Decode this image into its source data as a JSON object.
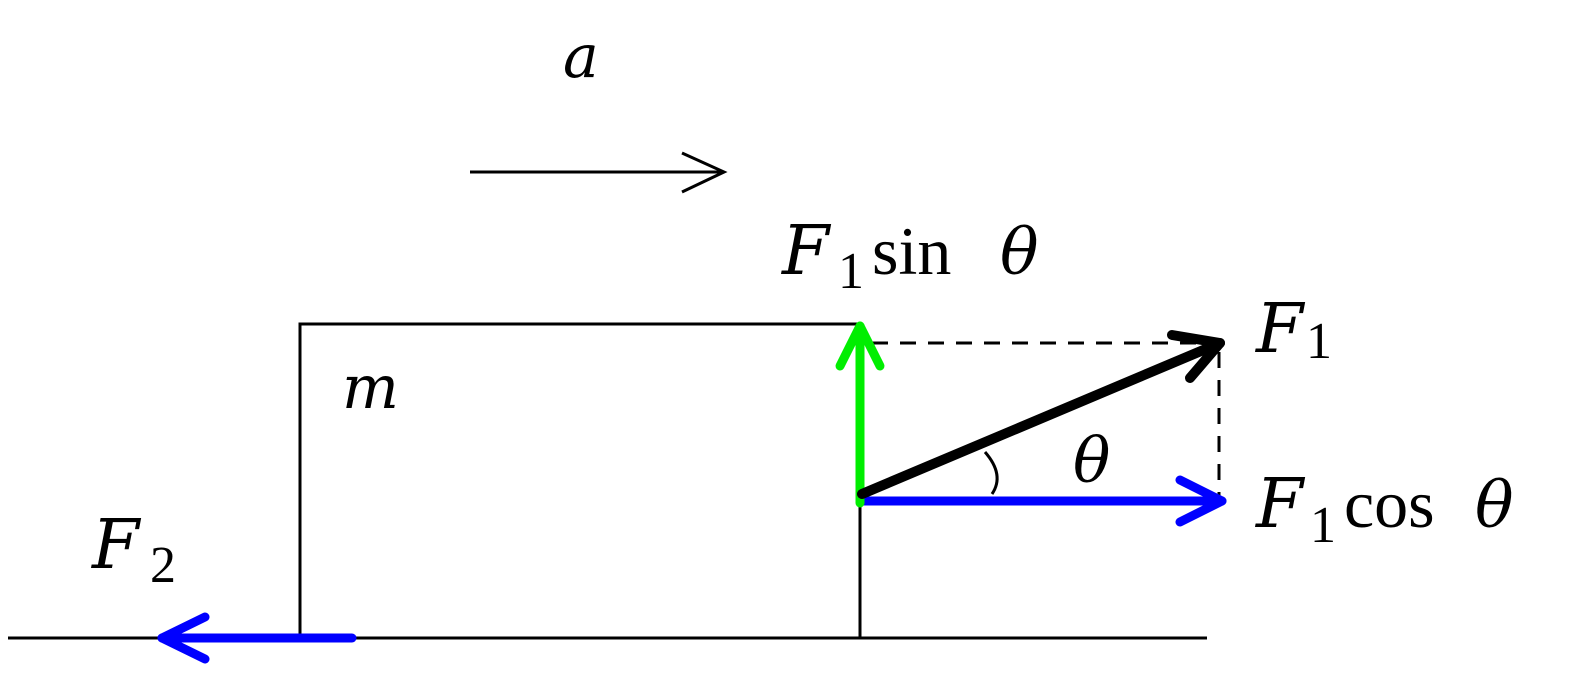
{
  "labels": {
    "acceleration": "a",
    "mass": "m",
    "force1": {
      "symbol": "F",
      "sub": "1"
    },
    "force2": {
      "symbol": "F",
      "sub": "2"
    },
    "angle": "θ",
    "vertical_component": {
      "symbol": "F",
      "sub": "1",
      "func": "sin",
      "angle": "θ"
    },
    "horizontal_component": {
      "symbol": "F",
      "sub": "1",
      "func": "cos",
      "angle": "θ"
    }
  },
  "colors": {
    "force1": "#000000",
    "vertical_component": "#00ee00",
    "horizontal_component": "#0000ff",
    "force2": "#0000ff",
    "outline": "#000000"
  }
}
